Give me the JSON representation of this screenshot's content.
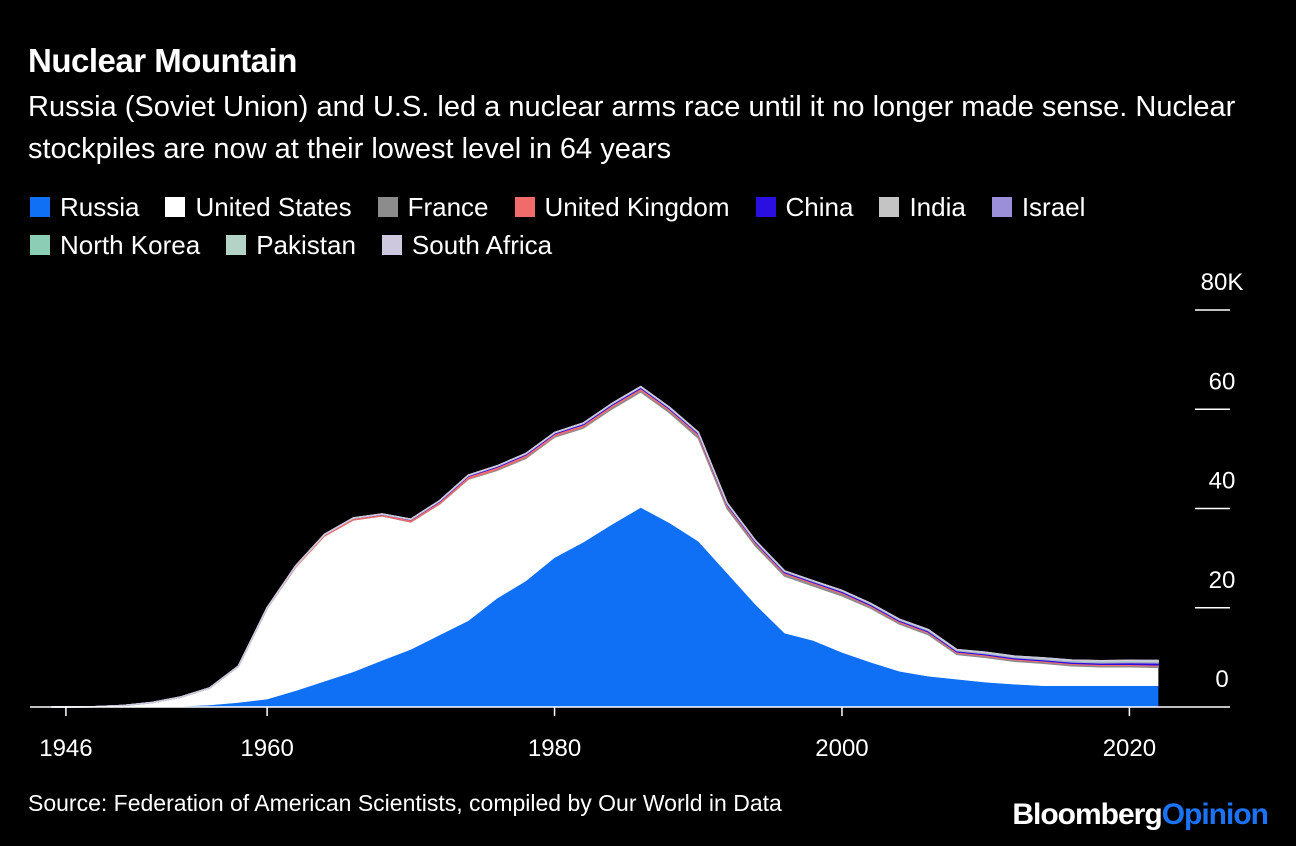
{
  "chart_data": {
    "type": "stacked_area",
    "title": "Nuclear Mountain",
    "subtitle": "Russia (Soviet Union) and U.S. led a nuclear arms race until it no longer made sense. Nuclear stockpiles are now at their lowest level in 64 years",
    "source": "Source: Federation of American Scientists, compiled by Our World in Data",
    "brand": [
      "Bloomberg",
      "Opinion"
    ],
    "x": [
      1945,
      1948,
      1950,
      1952,
      1954,
      1956,
      1958,
      1960,
      1962,
      1964,
      1966,
      1968,
      1970,
      1972,
      1974,
      1976,
      1978,
      1980,
      1982,
      1984,
      1986,
      1988,
      1990,
      1992,
      1994,
      1996,
      1998,
      2000,
      2002,
      2004,
      2006,
      2008,
      2010,
      2012,
      2014,
      2016,
      2018,
      2020,
      2022
    ],
    "xlim": [
      1943.5,
      2027
    ],
    "xticks": [
      1946,
      1960,
      1980,
      2000,
      2020
    ],
    "ylim": [
      0,
      80
    ],
    "yticks": [
      0,
      20,
      40,
      60,
      {
        "value": 80,
        "label": "80K"
      }
    ],
    "series": [
      {
        "name": "Russia",
        "color": "#0f6ff5",
        "values": [
          0,
          0,
          0.005,
          0.05,
          0.15,
          0.4,
          0.9,
          1.6,
          3.3,
          5.2,
          7.1,
          9.4,
          11.6,
          14.5,
          17.4,
          21.9,
          25.4,
          30.1,
          33.2,
          36.8,
          40.2,
          37.1,
          33.4,
          27.0,
          20.6,
          14.9,
          13.4,
          11.0,
          9.0,
          7.2,
          6.2,
          5.6,
          5.0,
          4.6,
          4.3,
          4.3,
          4.3,
          4.3,
          4.3
        ]
      },
      {
        "name": "United States",
        "color": "#ffffff",
        "values": [
          0.002,
          0.05,
          0.3,
          0.85,
          1.85,
          3.4,
          7.3,
          18.3,
          25,
          29.3,
          30.6,
          29.1,
          25.7,
          26.4,
          28.5,
          25.8,
          24.7,
          24.3,
          23.0,
          23.3,
          23.3,
          22.2,
          20.8,
          13.0,
          11.8,
          11.5,
          11.0,
          11.4,
          10.9,
          9.5,
          8.4,
          5.0,
          5.0,
          4.6,
          4.5,
          4.0,
          3.8,
          3.8,
          3.7
        ]
      },
      {
        "name": "France",
        "color": "#8c8c8c",
        "values": [
          0,
          0,
          0,
          0,
          0,
          0,
          0,
          0,
          0,
          0.004,
          0.04,
          0.04,
          0.04,
          0.1,
          0.15,
          0.2,
          0.25,
          0.25,
          0.3,
          0.35,
          0.36,
          0.42,
          0.5,
          0.54,
          0.48,
          0.45,
          0.45,
          0.47,
          0.35,
          0.35,
          0.35,
          0.3,
          0.3,
          0.3,
          0.3,
          0.3,
          0.29,
          0.29,
          0.29
        ]
      },
      {
        "name": "United Kingdom",
        "color": "#f26b6b",
        "values": [
          0,
          0,
          0,
          0,
          0.01,
          0.02,
          0.05,
          0.1,
          0.2,
          0.3,
          0.32,
          0.3,
          0.4,
          0.42,
          0.45,
          0.45,
          0.45,
          0.4,
          0.4,
          0.4,
          0.38,
          0.35,
          0.35,
          0.3,
          0.28,
          0.26,
          0.25,
          0.25,
          0.25,
          0.24,
          0.23,
          0.23,
          0.22,
          0.22,
          0.22,
          0.22,
          0.22,
          0.22,
          0.22
        ]
      },
      {
        "name": "China",
        "color": "#2a0fe0",
        "values": [
          0,
          0,
          0,
          0,
          0,
          0,
          0,
          0,
          0,
          0.001,
          0.02,
          0.04,
          0.075,
          0.13,
          0.17,
          0.19,
          0.2,
          0.2,
          0.23,
          0.24,
          0.24,
          0.23,
          0.23,
          0.23,
          0.23,
          0.23,
          0.23,
          0.23,
          0.23,
          0.23,
          0.23,
          0.23,
          0.24,
          0.25,
          0.26,
          0.27,
          0.3,
          0.35,
          0.41
        ]
      },
      {
        "name": "India",
        "color": "#c4c4c4",
        "values": [
          0,
          0,
          0,
          0,
          0,
          0,
          0,
          0,
          0,
          0,
          0,
          0,
          0,
          0,
          0,
          0,
          0,
          0,
          0,
          0,
          0,
          0,
          0,
          0,
          0,
          0,
          0.01,
          0.02,
          0.03,
          0.04,
          0.05,
          0.06,
          0.08,
          0.09,
          0.1,
          0.12,
          0.13,
          0.15,
          0.16
        ]
      },
      {
        "name": "Israel",
        "color": "#9a8fd8",
        "values": [
          0,
          0,
          0,
          0,
          0,
          0,
          0,
          0,
          0,
          0,
          0.002,
          0.01,
          0.02,
          0.03,
          0.04,
          0.05,
          0.06,
          0.06,
          0.07,
          0.07,
          0.08,
          0.08,
          0.08,
          0.08,
          0.08,
          0.08,
          0.08,
          0.08,
          0.08,
          0.08,
          0.08,
          0.08,
          0.08,
          0.08,
          0.08,
          0.09,
          0.09,
          0.09,
          0.09
        ]
      },
      {
        "name": "North Korea",
        "color": "#8ccdb6",
        "values": [
          0,
          0,
          0,
          0,
          0,
          0,
          0,
          0,
          0,
          0,
          0,
          0,
          0,
          0,
          0,
          0,
          0,
          0,
          0,
          0,
          0,
          0,
          0,
          0,
          0,
          0,
          0,
          0,
          0,
          0,
          0.002,
          0.005,
          0.01,
          0.01,
          0.015,
          0.02,
          0.03,
          0.04,
          0.04
        ]
      },
      {
        "name": "Pakistan",
        "color": "#b3d3c6",
        "values": [
          0,
          0,
          0,
          0,
          0,
          0,
          0,
          0,
          0,
          0,
          0,
          0,
          0,
          0,
          0,
          0,
          0,
          0,
          0,
          0,
          0,
          0,
          0,
          0,
          0,
          0,
          0.005,
          0.02,
          0.03,
          0.04,
          0.06,
          0.07,
          0.09,
          0.1,
          0.12,
          0.13,
          0.15,
          0.16,
          0.17
        ]
      },
      {
        "name": "South Africa",
        "color": "#cdc8de",
        "values": [
          0,
          0,
          0,
          0,
          0,
          0,
          0,
          0,
          0,
          0,
          0,
          0,
          0,
          0,
          0,
          0,
          0,
          0.001,
          0.002,
          0.003,
          0.004,
          0.005,
          0.006,
          0,
          0,
          0,
          0,
          0,
          0,
          0,
          0,
          0,
          0,
          0,
          0,
          0,
          0,
          0,
          0
        ]
      }
    ]
  }
}
